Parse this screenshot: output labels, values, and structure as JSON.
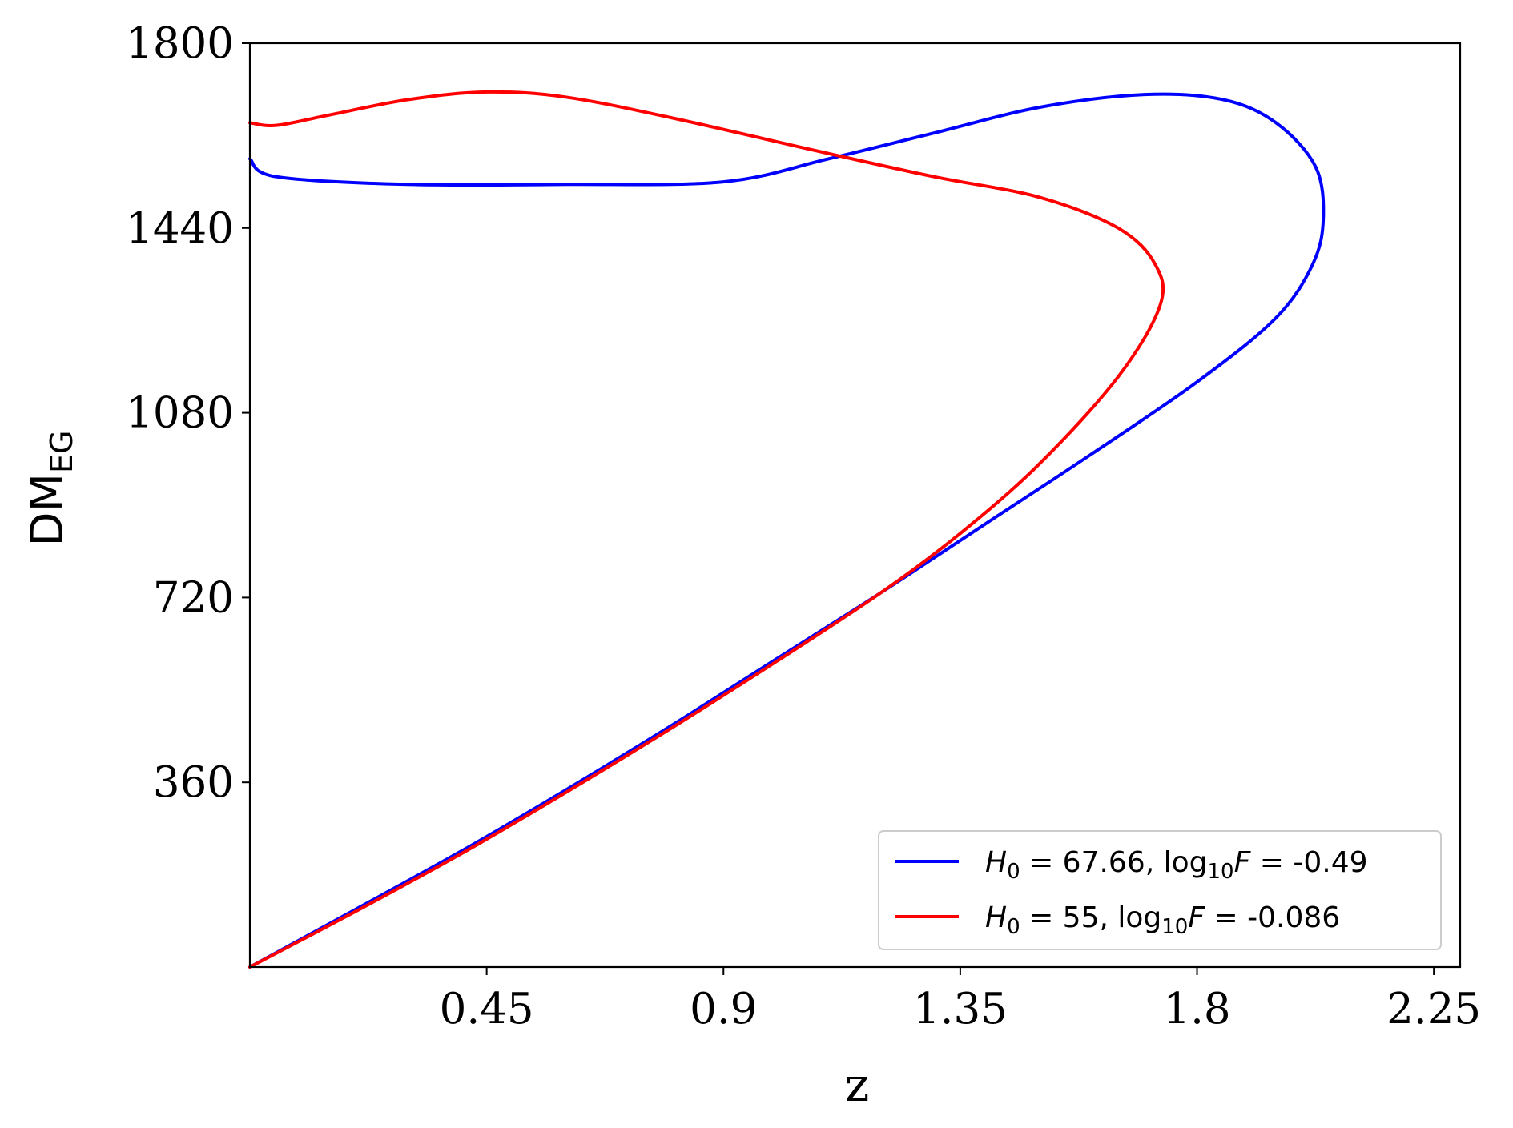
{
  "chart_data": {
    "type": "line",
    "title": "",
    "xlabel": "z",
    "ylabel": {
      "main": "DM",
      "sub": "EG"
    },
    "xlim": [
      0.0,
      2.3
    ],
    "ylim": [
      0,
      1800
    ],
    "xticks": [
      0.45,
      0.9,
      1.35,
      1.8,
      2.25
    ],
    "xtick_labels": [
      "0.45",
      "0.9",
      "1.35",
      "1.8",
      "2.25"
    ],
    "yticks": [
      360,
      720,
      1080,
      1440,
      1800
    ],
    "ytick_labels": [
      "360",
      "720",
      "1080",
      "1440",
      "1800"
    ],
    "grid": false,
    "legend": {
      "placement": "lower-right"
    },
    "series": [
      {
        "name": "H0 = 67.66, log10F = -0.49",
        "legend_parts": {
          "symbol": "H",
          "symbol_sub": "0",
          "eq1": " = 67.66, log",
          "log_sub": "10",
          "var": "F",
          "eq2": " =  -0.49"
        },
        "color": "#0000ff",
        "points": [
          {
            "x": 0.0,
            "y": 0
          },
          {
            "x": 0.2,
            "y": 112
          },
          {
            "x": 0.4,
            "y": 225
          },
          {
            "x": 0.6,
            "y": 345
          },
          {
            "x": 0.8,
            "y": 470
          },
          {
            "x": 1.0,
            "y": 600
          },
          {
            "x": 1.2,
            "y": 730
          },
          {
            "x": 1.4,
            "y": 865
          },
          {
            "x": 1.6,
            "y": 1000
          },
          {
            "x": 1.8,
            "y": 1140
          },
          {
            "x": 1.95,
            "y": 1265
          },
          {
            "x": 2.02,
            "y": 1370
          },
          {
            "x": 2.04,
            "y": 1460
          },
          {
            "x": 2.025,
            "y": 1560
          },
          {
            "x": 1.95,
            "y": 1645
          },
          {
            "x": 1.85,
            "y": 1690
          },
          {
            "x": 1.7,
            "y": 1700
          },
          {
            "x": 1.5,
            "y": 1675
          },
          {
            "x": 1.3,
            "y": 1625
          },
          {
            "x": 1.1,
            "y": 1575
          },
          {
            "x": 0.9,
            "y": 1530
          },
          {
            "x": 0.6,
            "y": 1525
          },
          {
            "x": 0.3,
            "y": 1525
          },
          {
            "x": 0.05,
            "y": 1540
          },
          {
            "x": 0.0,
            "y": 1575
          }
        ]
      },
      {
        "name": "H0 = 55, log10F = -0.086",
        "legend_parts": {
          "symbol": "H",
          "symbol_sub": "0",
          "eq1": " = 55, log",
          "log_sub": "10",
          "var": "F",
          "eq2": " =  -0.086"
        },
        "color": "#ff0000",
        "points": [
          {
            "x": 0.0,
            "y": 0
          },
          {
            "x": 0.2,
            "y": 108
          },
          {
            "x": 0.4,
            "y": 220
          },
          {
            "x": 0.6,
            "y": 340
          },
          {
            "x": 0.8,
            "y": 465
          },
          {
            "x": 1.0,
            "y": 595
          },
          {
            "x": 1.2,
            "y": 730
          },
          {
            "x": 1.35,
            "y": 845
          },
          {
            "x": 1.5,
            "y": 980
          },
          {
            "x": 1.65,
            "y": 1150
          },
          {
            "x": 1.73,
            "y": 1290
          },
          {
            "x": 1.72,
            "y": 1370
          },
          {
            "x": 1.65,
            "y": 1440
          },
          {
            "x": 1.5,
            "y": 1500
          },
          {
            "x": 1.3,
            "y": 1540
          },
          {
            "x": 1.1,
            "y": 1585
          },
          {
            "x": 0.8,
            "y": 1655
          },
          {
            "x": 0.6,
            "y": 1695
          },
          {
            "x": 0.45,
            "y": 1705
          },
          {
            "x": 0.3,
            "y": 1690
          },
          {
            "x": 0.15,
            "y": 1660
          },
          {
            "x": 0.05,
            "y": 1640
          },
          {
            "x": 0.0,
            "y": 1645
          }
        ]
      }
    ]
  }
}
